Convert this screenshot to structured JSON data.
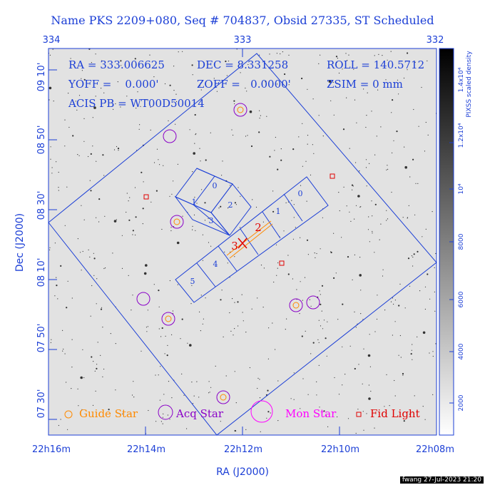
{
  "title": "Name PKS 2209+080, Seq # 704837, Obsid 27335, ST Scheduled",
  "top_ticks": [
    "334",
    "333",
    "332"
  ],
  "bottom_ticks": [
    "22h16m",
    "22h14m",
    "22h12m",
    "22h10m",
    "22h08m"
  ],
  "left_ticks": [
    "09 10'",
    "08 50'",
    "08 30'",
    "08 10'",
    "07 50'",
    "07 30'"
  ],
  "xlabel": "RA (J2000)",
  "ylabel": "Dec (J2000)",
  "info": {
    "ra": "RA = 333.006625",
    "dec": "DEC = 8.331258",
    "roll": "ROLL = 140.5712",
    "yoff": "YOFF =    0.000'",
    "zoff": "ZOFF =   0.0000'",
    "zsim": "ZSIM = 0 mm",
    "acis": "ACIS PB = WT00D50014"
  },
  "chips": {
    "i0": "0",
    "i1": "1",
    "i2": "2",
    "i3": "3",
    "s0": "0",
    "s1": "1",
    "s4": "4",
    "s5": "5",
    "s2": "2",
    "s3": "3"
  },
  "colorbar": {
    "label_top": "1.4x10⁴",
    "label_desc": "PIXSS scaled density",
    "ticks": [
      "1.2x10⁴",
      "10⁴",
      "8000",
      "6000",
      "4000",
      "2000"
    ]
  },
  "legend": {
    "guide": "Guide Star",
    "acq": "Acq Star",
    "mon": "Mon Star",
    "fid": "Fid Light"
  },
  "colors": {
    "frame": "#1c3fd6",
    "guide": "#ff8a00",
    "acq": "#8a00c8",
    "mon": "#ff00ff",
    "fid": "#e00000"
  },
  "footer": "fwang 27-Jul-2023 21:20"
}
